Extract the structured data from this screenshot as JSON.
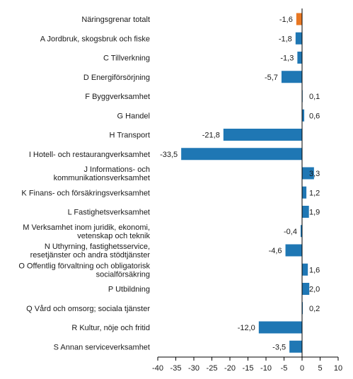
{
  "chart_data": {
    "type": "bar",
    "orientation": "horizontal",
    "title": "",
    "xlabel": "",
    "ylabel": "",
    "xlim": [
      -40,
      10
    ],
    "x_ticks": [
      -40,
      -35,
      -30,
      -25,
      -20,
      -15,
      -10,
      -5,
      0,
      5,
      10
    ],
    "grid": false,
    "legend": "none",
    "colors": {
      "default": "#1f77b4",
      "highlight": "#e87722"
    },
    "categories": [
      "Näringsgrenar totalt",
      "A Jordbruk, skogsbruk och fiske",
      "C Tillverkning",
      "D Energiförsörjning",
      "F Byggverksamhet",
      "G Handel",
      "H Transport",
      "I Hotell- och restaurangverksamhet",
      "J Informations- och kommunikationsverksamhet",
      "K Finans- och försäkringsverksamhet",
      "L Fastighetsverksamhet",
      "M Verksamhet inom juridik, ekonomi, vetenskap och teknik",
      "N Uthyrning, fastighetsservice, resetjänster och andra stödtjänster",
      "O Offentlig förvaltning och obligatorisk socialförsäkring",
      "P Utbildning",
      "Q Vård och omsorg; sociala tjänster",
      "R Kultur, nöje och fritid",
      "S Annan serviceverksamhet"
    ],
    "category_lines": [
      [
        "Näringsgrenar totalt"
      ],
      [
        "A Jordbruk, skogsbruk och fiske"
      ],
      [
        "C Tillverkning"
      ],
      [
        "D Energiförsörjning"
      ],
      [
        "F Byggverksamhet"
      ],
      [
        "G Handel"
      ],
      [
        "H Transport"
      ],
      [
        "I Hotell- och restaurangverksamhet"
      ],
      [
        "J Informations- och",
        "kommunikationsverksamhet"
      ],
      [
        "K Finans- och försäkringsverksamhet"
      ],
      [
        "L Fastighetsverksamhet"
      ],
      [
        "M Verksamhet inom juridik, ekonomi,",
        "vetenskap och teknik"
      ],
      [
        "N Uthyrning, fastighetsservice,",
        "resetjänster och andra stödtjänster"
      ],
      [
        "O Offentlig förvaltning och obligatorisk",
        "socialförsäkring"
      ],
      [
        "P Utbildning"
      ],
      [
        "Q Vård och omsorg; sociala tjänster"
      ],
      [
        "R Kultur, nöje och fritid"
      ],
      [
        "S Annan serviceverksamhet"
      ]
    ],
    "values": [
      -1.6,
      -1.8,
      -1.3,
      -5.7,
      0.1,
      0.6,
      -21.8,
      -33.5,
      3.3,
      1.2,
      1.9,
      -0.4,
      -4.6,
      1.6,
      2.0,
      0.2,
      -12.0,
      -3.5
    ],
    "value_labels": [
      "-1,6",
      "-1,8",
      "-1,3",
      "-5,7",
      "0,1",
      "0,6",
      "-21,8",
      "-33,5",
      "3,3",
      "1,2",
      "1,9",
      "-0,4",
      "-4,6",
      "1,6",
      "2,0",
      "0,2",
      "-12,0",
      "-3,5"
    ],
    "highlight_index": 0
  }
}
